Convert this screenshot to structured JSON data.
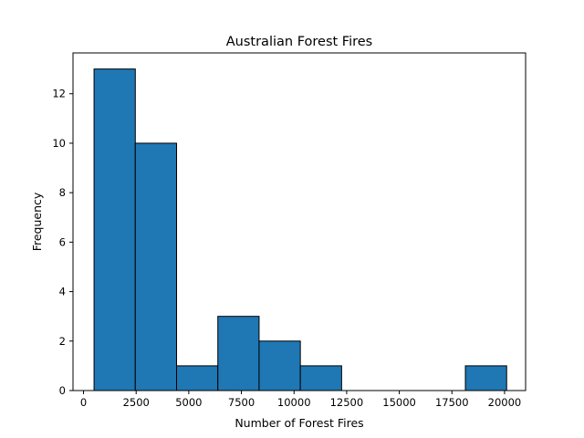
{
  "chart_data": {
    "type": "bar",
    "subtype": "histogram",
    "title": "Australian Forest Fires",
    "xlabel": "Number of Forest Fires",
    "ylabel": "Frequency",
    "xlim": [
      -500,
      21000
    ],
    "ylim": [
      0,
      13.65
    ],
    "x_ticks": [
      0,
      2500,
      5000,
      7500,
      10000,
      12500,
      15000,
      17500,
      20000
    ],
    "x_tick_labels": [
      "0",
      "2500",
      "5000",
      "7500",
      "10000",
      "12500",
      "15000",
      "17500",
      "20000"
    ],
    "y_ticks": [
      0,
      2,
      4,
      6,
      8,
      10,
      12
    ],
    "y_tick_labels": [
      "0",
      "2",
      "4",
      "6",
      "8",
      "10",
      "12"
    ],
    "bins": [
      {
        "start": 500,
        "end": 2460,
        "count": 13
      },
      {
        "start": 2460,
        "end": 4420,
        "count": 10
      },
      {
        "start": 4420,
        "end": 6380,
        "count": 1
      },
      {
        "start": 6380,
        "end": 8340,
        "count": 3
      },
      {
        "start": 8340,
        "end": 10300,
        "count": 2
      },
      {
        "start": 10300,
        "end": 12260,
        "count": 1
      },
      {
        "start": 12260,
        "end": 14220,
        "count": 0
      },
      {
        "start": 14220,
        "end": 16180,
        "count": 0
      },
      {
        "start": 16180,
        "end": 18140,
        "count": 0
      },
      {
        "start": 18140,
        "end": 20100,
        "count": 1
      }
    ],
    "grid": false,
    "colors": {
      "bar_fill": "#1f77b4",
      "bar_edge": "#000000"
    }
  }
}
